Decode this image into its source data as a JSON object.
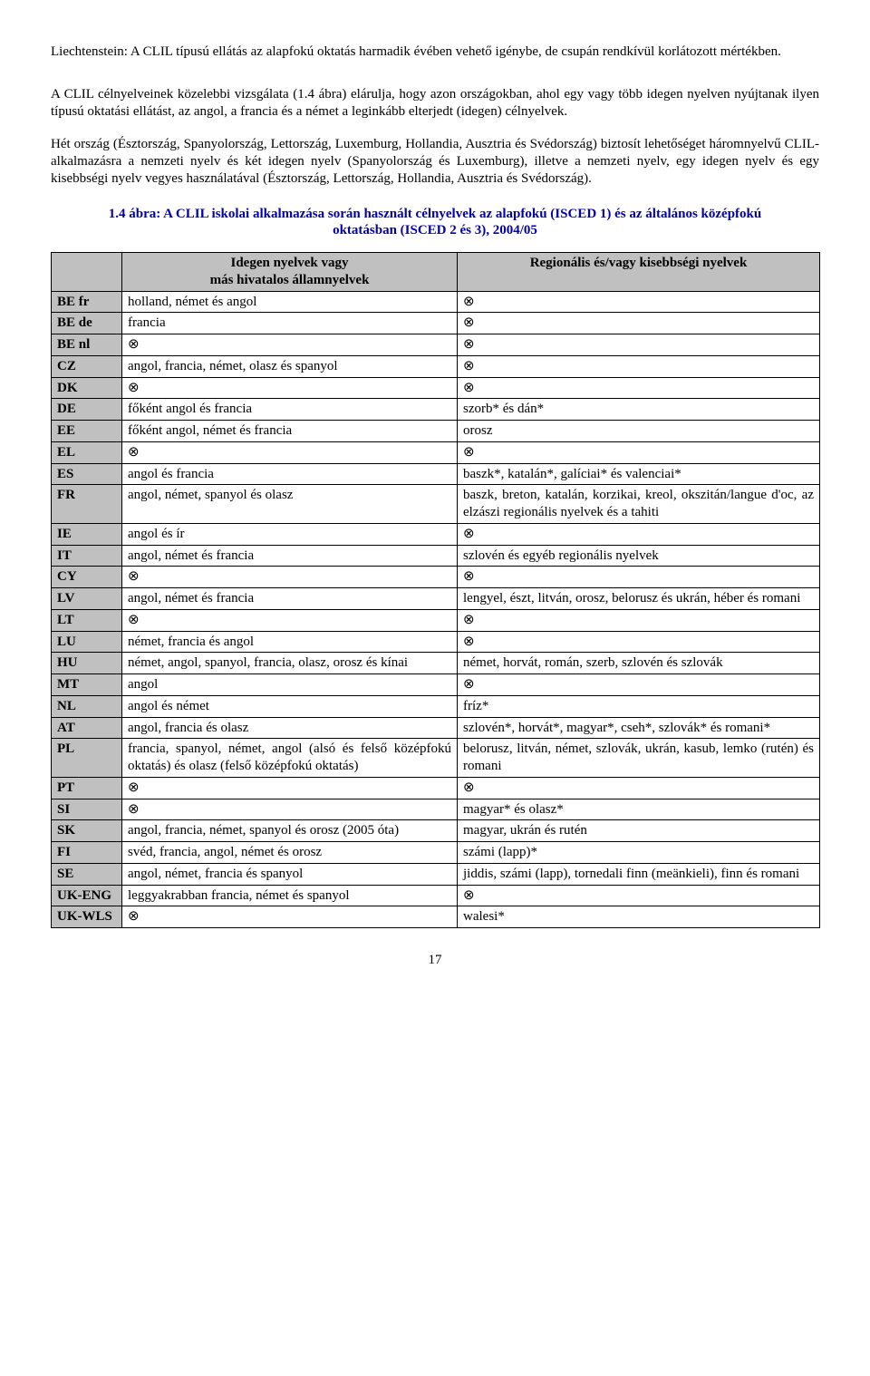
{
  "note_text": "Liechtenstein: A CLIL típusú ellátás az alapfokú oktatás harmadik évében vehető igénybe, de csupán rendkívül korlátozott mértékben.",
  "p1": "A CLIL célnyelveinek közelebbi vizsgálata (1.4 ábra) elárulja, hogy azon országokban, ahol egy vagy több idegen nyelven nyújtanak ilyen típusú oktatási ellátást, az angol, a francia és a német a leginkább elterjedt (idegen) célnyelvek.",
  "p2": "Hét ország (Észtország, Spanyolország, Lettország, Luxemburg, Hollandia, Ausztria és Svédország) biztosít lehetőséget háromnyelvű CLIL-alkalmazásra a nemzeti nyelv és két idegen nyelv (Spanyolország és Luxemburg), illetve a nemzeti nyelv, egy idegen nyelv és egy kisebbségi nyelv vegyes használatával (Észtország, Lettország, Hollandia, Ausztria és Svédország).",
  "caption": "1.4 ábra: A CLIL iskolai alkalmazása során használt célnyelvek az alapfokú (ISCED 1) és az általános középfokú oktatásban (ISCED 2 és 3), 2004/05",
  "head_col2a": "Idegen nyelvek vagy",
  "head_col2b": "más hivatalos államnyelvek",
  "head_col3": "Regionális és/vagy kisebbségi nyelvek",
  "empty": "⊗",
  "rows": {
    "r0": {
      "c": "BE fr",
      "a": "holland, német és angol",
      "b": "⊗"
    },
    "r1": {
      "c": "BE de",
      "a": "francia",
      "b": "⊗"
    },
    "r2": {
      "c": "BE nl",
      "a": "⊗",
      "b": "⊗"
    },
    "r3": {
      "c": "CZ",
      "a": "angol, francia, német, olasz és spanyol",
      "b": "⊗"
    },
    "r4": {
      "c": "DK",
      "a": "⊗",
      "b": "⊗"
    },
    "r5": {
      "c": "DE",
      "a": "főként angol és francia",
      "b": "szorb* és dán*"
    },
    "r6": {
      "c": "EE",
      "a": "főként angol, német és francia",
      "b": "orosz"
    },
    "r7": {
      "c": "EL",
      "a": "⊗",
      "b": "⊗"
    },
    "r8": {
      "c": "ES",
      "a": "angol és francia",
      "b": "baszk*, katalán*, galíciai* és valenciai*"
    },
    "r9": {
      "c": "FR",
      "a": "angol, német, spanyol és olasz",
      "b": "baszk, breton, katalán, korzikai, kreol, okszitán/langue d'oc, az elzászi regionális nyelvek és a tahiti"
    },
    "r10": {
      "c": "IE",
      "a": "angol és ír",
      "b": "⊗"
    },
    "r11": {
      "c": "IT",
      "a": "angol, német és francia",
      "b": "szlovén és egyéb regionális nyelvek"
    },
    "r12": {
      "c": "CY",
      "a": "⊗",
      "b": "⊗"
    },
    "r13": {
      "c": "LV",
      "a": "angol, német és francia",
      "b": "lengyel, észt, litván, orosz, belorusz és ukrán, héber és romani"
    },
    "r14": {
      "c": "LT",
      "a": "⊗",
      "b": "⊗"
    },
    "r15": {
      "c": "LU",
      "a": "német, francia és angol",
      "b": "⊗"
    },
    "r16": {
      "c": "HU",
      "a": "német, angol, spanyol, francia, olasz, orosz és kínai",
      "b": "német, horvát, román, szerb, szlovén és szlovák"
    },
    "r17": {
      "c": "MT",
      "a": "angol",
      "b": "⊗"
    },
    "r18": {
      "c": "NL",
      "a": "angol és német",
      "b": "fríz*"
    },
    "r19": {
      "c": "AT",
      "a": "angol, francia és olasz",
      "b": "szlovén*, horvát*, magyar*, cseh*, szlovák* és romani*"
    },
    "r20": {
      "c": "PL",
      "a": "francia, spanyol, német, angol (alsó és felső középfokú oktatás) és olasz (felső középfokú oktatás)",
      "b": "belorusz, litván, német, szlovák, ukrán, kasub, lemko (rutén) és romani"
    },
    "r21": {
      "c": "PT",
      "a": "⊗",
      "b": "⊗"
    },
    "r22": {
      "c": "SI",
      "a": "⊗",
      "b": "magyar* és olasz*"
    },
    "r23": {
      "c": "SK",
      "a": "angol, francia, német, spanyol és orosz (2005 óta)",
      "b": "magyar, ukrán és rutén"
    },
    "r24": {
      "c": "FI",
      "a": "svéd, francia, angol, német és orosz",
      "b": "számi (lapp)*"
    },
    "r25": {
      "c": "SE",
      "a": "angol, német, francia és spanyol",
      "b": "jiddis, számi (lapp), tornedali finn (meänkieli), finn és romani"
    },
    "r26": {
      "c": "UK-ENG",
      "a": "leggyakrabban francia, német és spanyol",
      "b": "⊗"
    },
    "r27": {
      "c": "UK-WLS",
      "a": "⊗",
      "b": "walesi*"
    }
  },
  "pagenum": "17"
}
